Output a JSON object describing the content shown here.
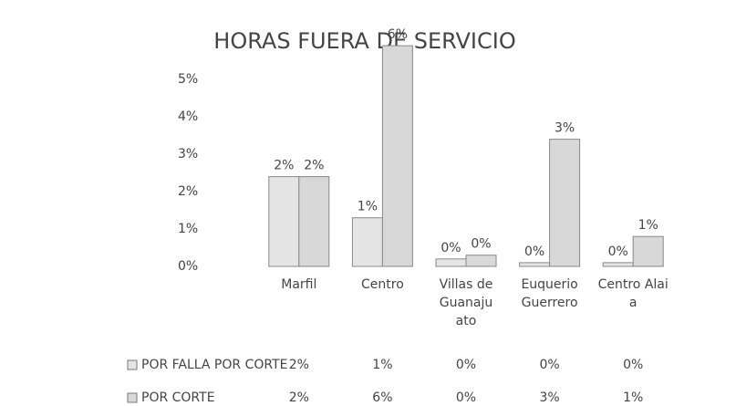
{
  "chart_data": {
    "type": "bar",
    "title": "HORAS FUERA DE SERVICIO",
    "categories": [
      "Marfil",
      "Centro",
      "Villas de Guanajuato",
      "Euquerio Guerrero",
      "Centro Alaia"
    ],
    "series": [
      {
        "name": "POR FALLA  POR CORTE",
        "color": "#e4e4e4",
        "values": [
          2.4,
          1.3,
          0.2,
          0.1,
          0.1
        ],
        "value_labels": [
          "2%",
          "1%",
          "0%",
          "0%",
          "0%"
        ]
      },
      {
        "name": "POR CORTE",
        "color": "#d8d8d8",
        "values": [
          2.4,
          5.9,
          0.3,
          3.4,
          0.8
        ],
        "value_labels": [
          "2%",
          "6%",
          "0%",
          "3%",
          "1%"
        ]
      }
    ],
    "ylim": [
      0,
      6
    ],
    "yticks": [
      {
        "value": 0,
        "label": "0%"
      },
      {
        "value": 1,
        "label": "1%"
      },
      {
        "value": 2,
        "label": "2%"
      },
      {
        "value": 3,
        "label": "3%"
      },
      {
        "value": 4,
        "label": "4%"
      },
      {
        "value": 5,
        "label": "5%"
      }
    ],
    "data_table": true
  }
}
